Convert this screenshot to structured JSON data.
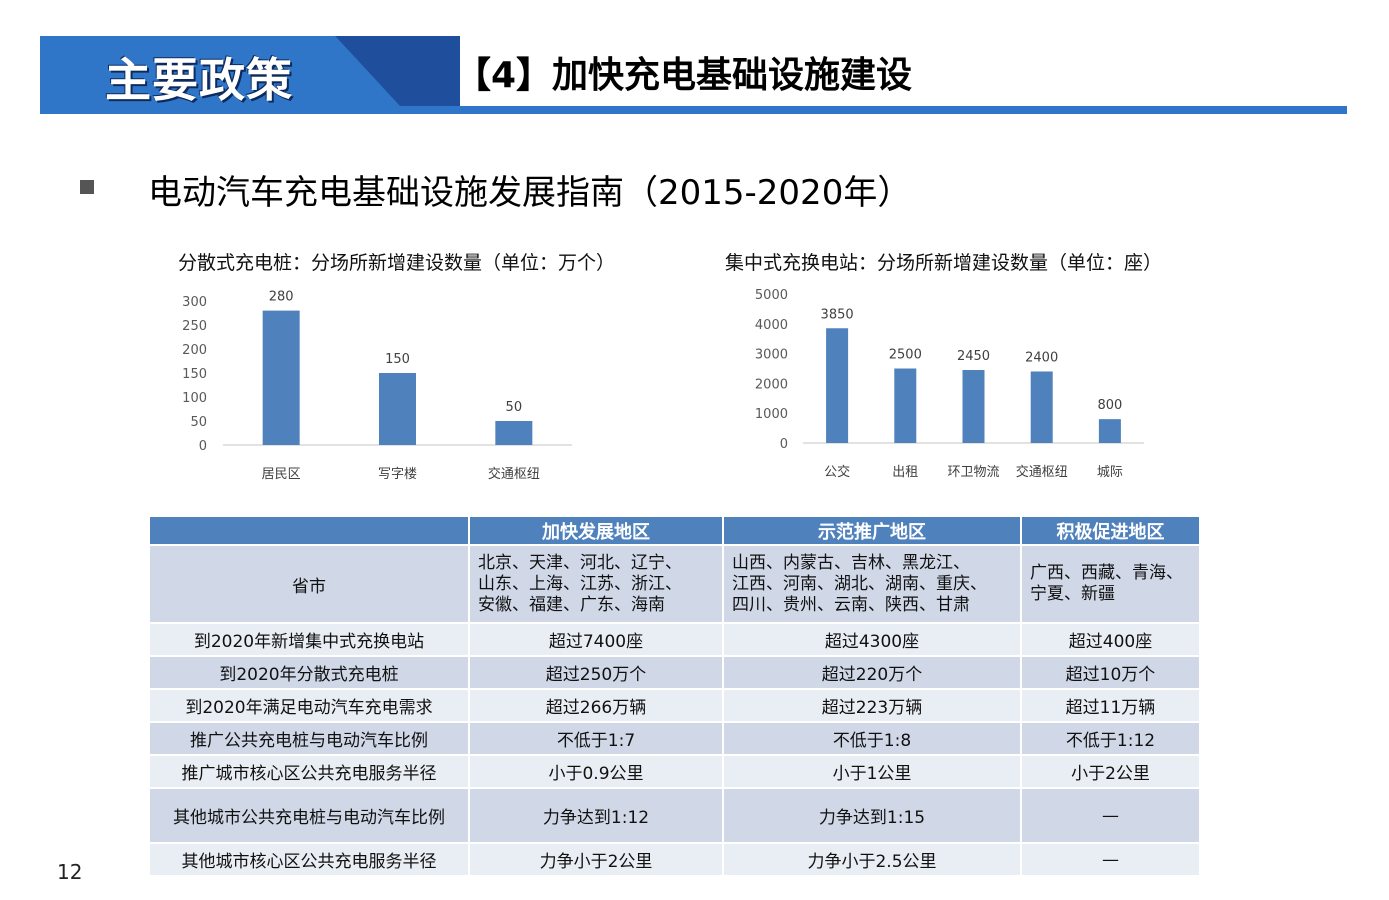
{
  "header": {
    "label": "主要政策",
    "title": "【4】加快充电基础设施建设"
  },
  "subtitle": "电动汽车充电基础设施发展指南（2015-2020年）",
  "chart_data": [
    {
      "type": "bar",
      "title": "分散式充电桩：分场所新增建设数量（单位：万个）",
      "categories": [
        "居民区",
        "写字楼",
        "交通枢纽"
      ],
      "values": [
        280,
        150,
        50
      ],
      "yticks": [
        "0",
        "50",
        "100",
        "150",
        "200",
        "250",
        "300"
      ],
      "ylim": [
        0,
        300
      ],
      "color": "#4f81bd"
    },
    {
      "type": "bar",
      "title": "集中式充换电站：分场所新增建设数量（单位：座）",
      "categories": [
        "公交",
        "出租",
        "环卫物流",
        "交通枢纽",
        "城际"
      ],
      "values": [
        3850,
        2500,
        2450,
        2400,
        800
      ],
      "yticks": [
        "0",
        "1000",
        "2000",
        "3000",
        "4000",
        "5000"
      ],
      "ylim": [
        0,
        5000
      ],
      "color": "#4f81bd"
    }
  ],
  "table": {
    "headers": [
      "",
      "加快发展地区",
      "示范推广地区",
      "积极促进地区"
    ],
    "rows": [
      {
        "label": "省市",
        "cells": [
          "北京、天津、河北、辽宁、\n山东、上海、江苏、浙江、\n安徽、福建、广东、海南",
          "山西、内蒙古、吉林、黑龙江、\n江西、河南、湖北、湖南、重庆、\n四川、贵州、云南、陕西、甘肃",
          "广西、西藏、青海、\n宁夏、新疆"
        ]
      },
      {
        "label": "到2020年新增集中式充换电站",
        "cells": [
          "超过7400座",
          "超过4300座",
          "超过400座"
        ]
      },
      {
        "label": "到2020年分散式充电桩",
        "cells": [
          "超过250万个",
          "超过220万个",
          "超过10万个"
        ]
      },
      {
        "label": "到2020年满足电动汽车充电需求",
        "cells": [
          "超过266万辆",
          "超过223万辆",
          "超过11万辆"
        ]
      },
      {
        "label": "推广公共充电桩与电动汽车比例",
        "cells": [
          "不低于1:7",
          "不低于1:8",
          "不低于1:12"
        ]
      },
      {
        "label": "推广城市核心区公共充电服务半径",
        "cells": [
          "小于0.9公里",
          "小于1公里",
          "小于2公里"
        ]
      },
      {
        "label": "其他城市公共充电桩与电动汽车比例",
        "cells": [
          "力争达到1:12",
          "力争达到1:15",
          "—"
        ]
      },
      {
        "label": "其他城市核心区公共充电服务半径",
        "cells": [
          "力争小于2公里",
          "力争小于2.5公里",
          "—"
        ]
      }
    ]
  },
  "page_number": "12"
}
